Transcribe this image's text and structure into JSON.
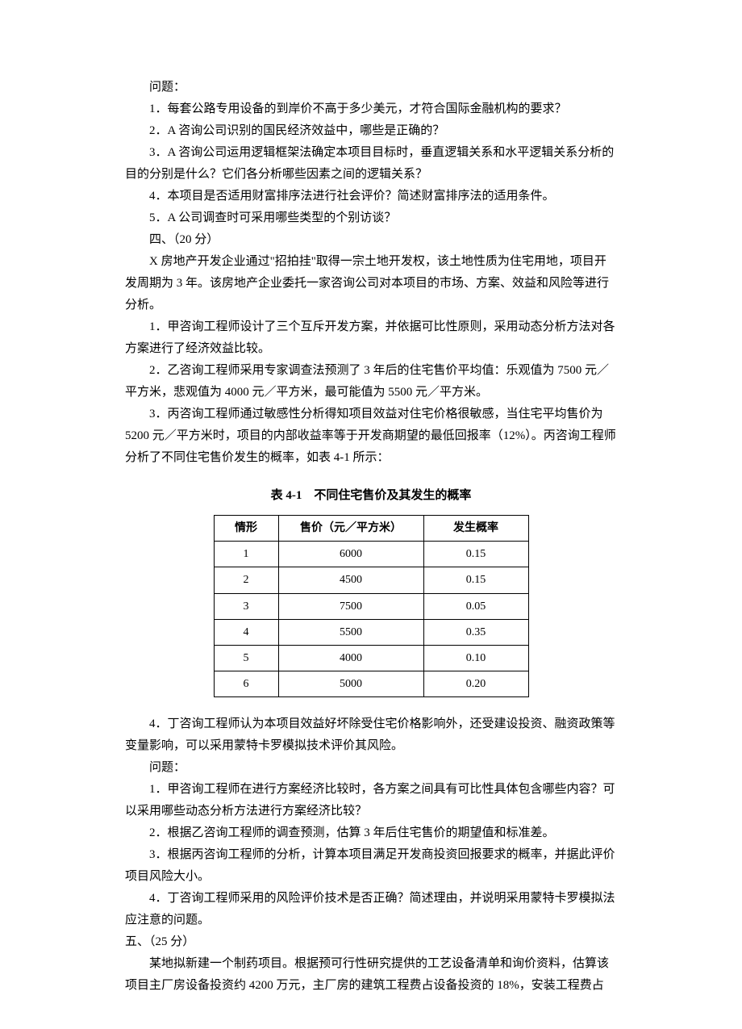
{
  "section3": {
    "header": "问题：",
    "q1": "1．每套公路专用设备的到岸价不高于多少美元，才符合国际金融机构的要求？",
    "q2": "2．A 咨询公司识别的国民经济效益中，哪些是正确的？",
    "q3": "3．A 咨询公司运用逻辑框架法确定本项目目标时，垂直逻辑关系和水平逻辑关系分析的目的分别是什么？它们各分析哪些因素之间的逻辑关系？",
    "q4": "4．本项目是否适用财富排序法进行社会评价？简述财富排序法的适用条件。",
    "q5": "5．A 公司调查时可采用哪些类型的个别访谈？"
  },
  "section4": {
    "header": "四、（20 分）",
    "p1": "X 房地产开发企业通过\"招拍挂\"取得一宗土地开发权，该土地性质为住宅用地，项目开发周期为 3 年。该房地产企业委托一家咨询公司对本项目的市场、方案、效益和风险等进行分析。",
    "p2": "1．甲咨询工程师设计了三个互斥开发方案，并依据可比性原则，采用动态分析方法对各方案进行了经济效益比较。",
    "p3": "2．乙咨询工程师采用专家调查法预测了 3 年后的住宅售价平均值：乐观值为 7500 元／平方米，悲观值为 4000 元／平方米，最可能值为 5500 元／平方米。",
    "p4": "3．丙咨询工程师通过敏感性分析得知项目效益对住宅价格很敏感，当住宅平均售价为5200 元／平方米时，项目的内部收益率等于开发商期望的最低回报率（12%）。丙咨询工程师分析了不同住宅售价发生的概率，如表 4-1 所示：",
    "p5": "4．丁咨询工程师认为本项目效益好坏除受住宅价格影响外，还受建设投资、融资政策等变量影响，可以采用蒙特卡罗模拟技术评价其风险。",
    "qheader": "问题：",
    "q1": "1．甲咨询工程师在进行方案经济比较时，各方案之间具有可比性具体包含哪些内容？可以采用哪些动态分析方法进行方案经济比较？",
    "q2": "2．根据乙咨询工程师的调查预测，估算 3 年后住宅售价的期望值和标准差。",
    "q3": "3．根据丙咨询工程师的分析，计算本项目满足开发商投资回报要求的概率，并据此评价项目风险大小。",
    "q4": "4．丁咨询工程师采用的风险评价技术是否正确？简述理由，并说明采用蒙特卡罗模拟法应注意的问题。"
  },
  "table": {
    "title": "表 4-1　不同住宅售价及其发生的概率",
    "headers": {
      "h1": "情形",
      "h2": "售价（元／平方米）",
      "h3": "发生概率"
    },
    "rows": [
      {
        "c1": "1",
        "c2": "6000",
        "c3": "0.15"
      },
      {
        "c1": "2",
        "c2": "4500",
        "c3": "0.15"
      },
      {
        "c1": "3",
        "c2": "7500",
        "c3": "0.05"
      },
      {
        "c1": "4",
        "c2": "5500",
        "c3": "0.35"
      },
      {
        "c1": "5",
        "c2": "4000",
        "c3": "0.10"
      },
      {
        "c1": "6",
        "c2": "5000",
        "c3": "0.20"
      }
    ]
  },
  "section5": {
    "header": "五、（25 分）",
    "p1": "某地拟新建一个制药项目。根据预可行性研究提供的工艺设备清单和询价资料，估算该项目主厂房设备投资约 4200 万元，主厂房的建筑工程费占设备投资的 18%，安装工程费占"
  }
}
